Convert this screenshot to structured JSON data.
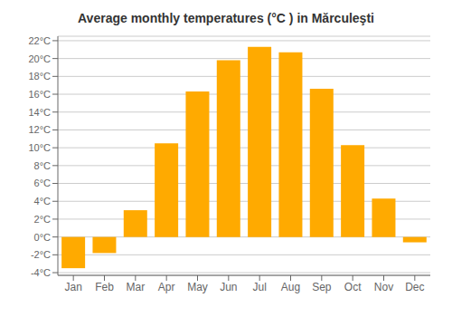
{
  "chart_data": {
    "type": "bar",
    "title": "Average monthly temperatures (°C ) in Mărculeşti",
    "categories": [
      "Jan",
      "Feb",
      "Mar",
      "Apr",
      "May",
      "Jun",
      "Jul",
      "Aug",
      "Sep",
      "Oct",
      "Nov",
      "Dec"
    ],
    "values": [
      -3.5,
      -1.8,
      3.0,
      10.5,
      16.3,
      19.8,
      21.3,
      20.7,
      16.6,
      10.3,
      4.3,
      -0.6
    ],
    "color": "#FFAA00",
    "ylim": [
      -4.3,
      22.5
    ],
    "yticks": [
      {
        "value": -4,
        "label": "-4°C"
      },
      {
        "value": -2,
        "label": "-2°C"
      },
      {
        "value": 0,
        "label": "0°C"
      },
      {
        "value": 2,
        "label": "2°C"
      },
      {
        "value": 4,
        "label": "4°C"
      },
      {
        "value": 6,
        "label": "6°C"
      },
      {
        "value": 8,
        "label": "8°C"
      },
      {
        "value": 10,
        "label": "10°C"
      },
      {
        "value": 12,
        "label": "12°C"
      },
      {
        "value": 14,
        "label": "14°C"
      },
      {
        "value": 16,
        "label": "16°C"
      },
      {
        "value": 18,
        "label": "18°C"
      },
      {
        "value": 20,
        "label": "20°C"
      },
      {
        "value": 22,
        "label": "22°C"
      }
    ],
    "grid": true
  }
}
